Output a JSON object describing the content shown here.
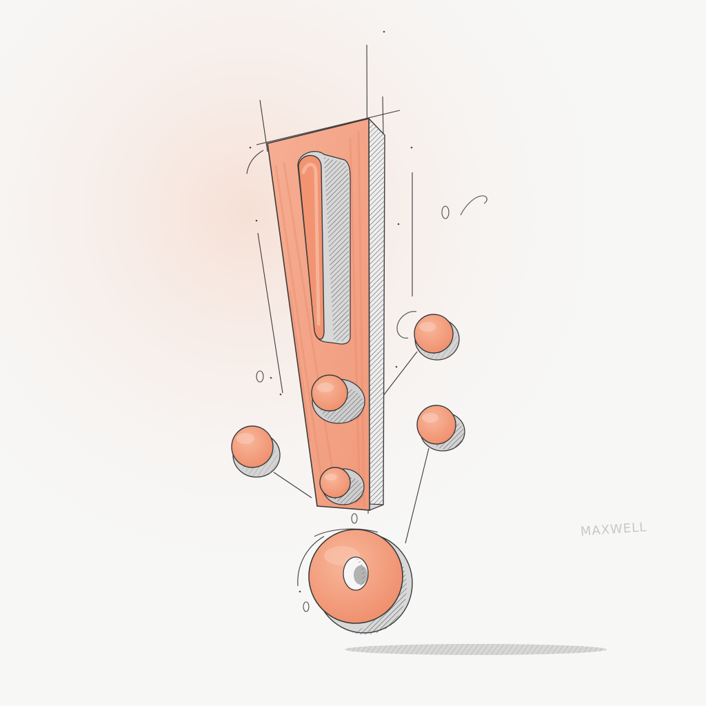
{
  "image": {
    "subject": "exclamation-mark-sketch",
    "style": "pencil-sketch-with-marker",
    "signature_text": "MAXWELL"
  },
  "palette": {
    "paper": "#f7f7f6",
    "marker_fill": "#f4a183",
    "marker_light": "#f7b89e",
    "marker_dark": "#e57a56",
    "pencil": "#3a3a3a",
    "pencil_light": "#8a8a8a",
    "shadow": "#9a9a9a"
  }
}
